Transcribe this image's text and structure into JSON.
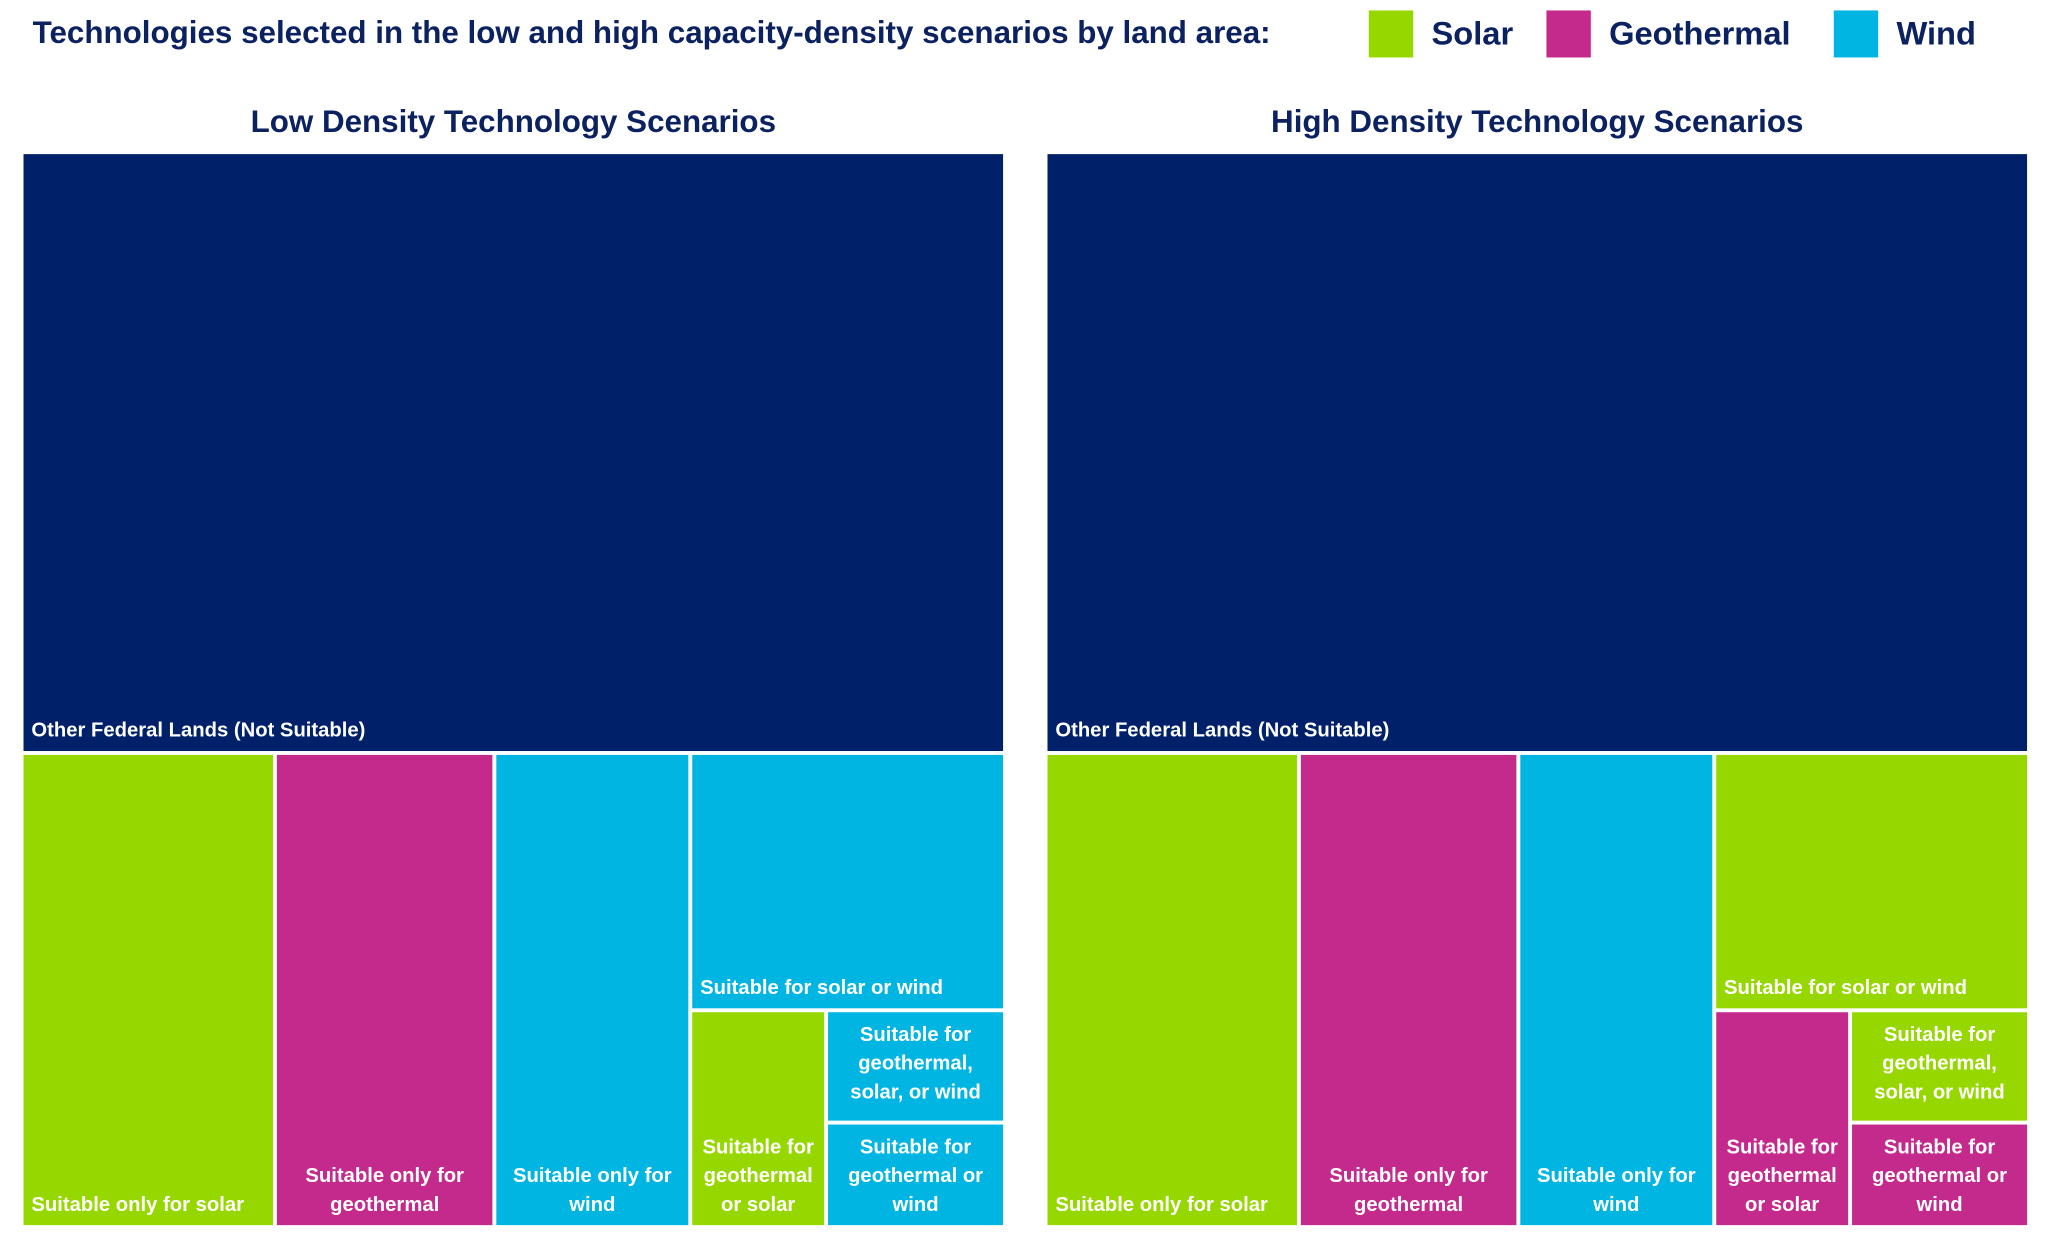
{
  "colors": {
    "Other": "#002169",
    "Solar": "#97d700",
    "Geothermal": "#c42a8c",
    "Wind": "#00b5e2"
  },
  "chart_data": {
    "type": "treemap",
    "title": "Technologies selected in the low and high capacity-density scenarios by land area:",
    "legend": {
      "placement": "top-right",
      "entries": [
        "Solar",
        "Geothermal",
        "Wind"
      ]
    },
    "value_unit": "approximate share of land area (%)",
    "panels": [
      {
        "title": "Low Density Technology Scenarios",
        "items": [
          {
            "label": "Other Federal Lands (Not Suitable)",
            "tech": "Other",
            "value": 55.7
          },
          {
            "label": "Suitable only for solar",
            "tech": "Solar",
            "value": 11.2
          },
          {
            "label": "Suitable only for geothermal",
            "tech": "Geothermal",
            "value": 9.7
          },
          {
            "label": "Suitable only for wind",
            "tech": "Wind",
            "value": 8.6
          },
          {
            "label": "Suitable for solar or wind",
            "tech": "Wind",
            "value": 7.5
          },
          {
            "label": "Suitable for geothermal or solar",
            "tech": "Solar",
            "value": 2.7
          },
          {
            "label": "Suitable for geothermal, solar, or wind",
            "tech": "Wind",
            "value": 1.8
          },
          {
            "label": "Suitable for geothermal or wind",
            "tech": "Wind",
            "value": 1.7
          }
        ]
      },
      {
        "title": "High Density Technology Scenarios",
        "items": [
          {
            "label": "Other Federal Lands (Not Suitable)",
            "tech": "Other",
            "value": 55.7
          },
          {
            "label": "Suitable only for solar",
            "tech": "Solar",
            "value": 11.2
          },
          {
            "label": "Suitable only for geothermal",
            "tech": "Geothermal",
            "value": 9.7
          },
          {
            "label": "Suitable only for wind",
            "tech": "Wind",
            "value": 8.6
          },
          {
            "label": "Suitable for solar or wind",
            "tech": "Solar",
            "value": 7.5
          },
          {
            "label": "Suitable for geothermal or solar",
            "tech": "Geothermal",
            "value": 2.7
          },
          {
            "label": "Suitable for geothermal, solar, or wind",
            "tech": "Solar",
            "value": 1.8
          },
          {
            "label": "Suitable for geothermal or wind",
            "tech": "Geothermal",
            "value": 1.7
          }
        ]
      }
    ]
  }
}
